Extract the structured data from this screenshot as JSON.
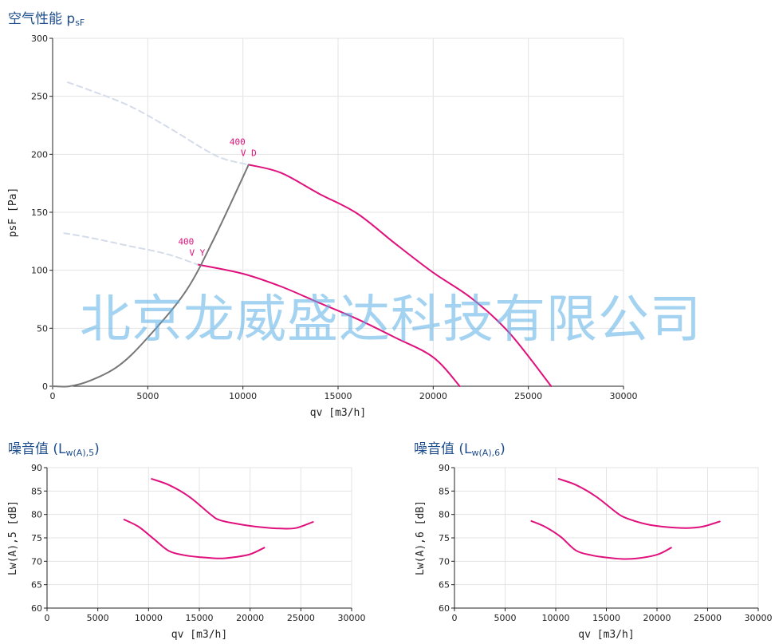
{
  "titles": {
    "main": "空气性能 p",
    "main_sub": "sF",
    "lw5": "噪音值 (L",
    "lw5_sub": "w(A),5",
    "lw5_end": ")",
    "lw6": "噪音值 (L",
    "lw6_sub": "w(A),6",
    "lw6_end": ")"
  },
  "watermark": "北京龙威盛达科技有限公司",
  "colors": {
    "curve": "#e0117c",
    "system": "#777777",
    "dashed": "#d4dcea",
    "grid": "#e3e3e3",
    "title": "#1f4e8c"
  },
  "chart_data": [
    {
      "id": "psf",
      "type": "line",
      "xlabel": "qv [m3/h]",
      "ylabel": "psF [Pa]",
      "xlim": [
        0,
        30000
      ],
      "ylim": [
        0,
        300
      ],
      "xticks": [
        0,
        5000,
        10000,
        15000,
        20000,
        25000,
        30000
      ],
      "yticks": [
        0,
        50,
        100,
        150,
        200,
        250,
        300
      ],
      "grid": true,
      "series": [
        {
          "kind": "fan",
          "points": [
            [
              10300,
              191
            ],
            [
              12000,
              184
            ],
            [
              14000,
              166
            ],
            [
              16000,
              149
            ],
            [
              18000,
              123
            ],
            [
              20000,
              98
            ],
            [
              22000,
              76
            ],
            [
              24000,
              46
            ],
            [
              26200,
              0
            ]
          ]
        },
        {
          "kind": "fan",
          "points": [
            [
              7600,
              105
            ],
            [
              10000,
              97
            ],
            [
              12000,
              86
            ],
            [
              14000,
              72
            ],
            [
              16000,
              58
            ],
            [
              18000,
              42
            ],
            [
              20000,
              25
            ],
            [
              21400,
              0
            ]
          ]
        },
        {
          "kind": "system",
          "points": [
            [
              0,
              0
            ],
            [
              900,
              0
            ],
            [
              2000,
              5
            ],
            [
              3500,
              18
            ],
            [
              5000,
              42
            ],
            [
              7000,
              82
            ],
            [
              8500,
              128
            ],
            [
              10300,
              191
            ]
          ]
        },
        {
          "kind": "extension",
          "points": [
            [
              800,
              262
            ],
            [
              2000,
              255
            ],
            [
              4000,
              242
            ],
            [
              6000,
              224
            ],
            [
              8000,
              204
            ],
            [
              9000,
              196
            ],
            [
              10300,
              191
            ]
          ]
        },
        {
          "kind": "extension",
          "points": [
            [
              600,
              132
            ],
            [
              2000,
              128
            ],
            [
              4000,
              121
            ],
            [
              6000,
              114
            ],
            [
              7600,
              105
            ]
          ]
        }
      ],
      "annotations": [
        {
          "line1": "400",
          "line2": "V D",
          "x": 10300,
          "y": 191
        },
        {
          "line1": "400",
          "line2": "V Y",
          "x": 7600,
          "y": 105
        }
      ]
    },
    {
      "id": "lw5",
      "type": "line",
      "xlabel": "qv [m3/h]",
      "ylabel": "Lw(A),5 [dB]",
      "xlim": [
        0,
        30000
      ],
      "ylim": [
        60,
        90
      ],
      "xticks": [
        0,
        5000,
        10000,
        15000,
        20000,
        25000,
        30000
      ],
      "yticks": [
        60,
        65,
        70,
        75,
        80,
        85,
        90
      ],
      "grid": true,
      "series": [
        {
          "kind": "fan",
          "points": [
            [
              10300,
              87.6
            ],
            [
              12000,
              86.3
            ],
            [
              14000,
              83.8
            ],
            [
              16000,
              80.2
            ],
            [
              17000,
              78.8
            ],
            [
              19000,
              77.9
            ],
            [
              21000,
              77.3
            ],
            [
              23000,
              77.0
            ],
            [
              24500,
              77.1
            ],
            [
              26200,
              78.4
            ]
          ]
        },
        {
          "kind": "fan",
          "points": [
            [
              7600,
              78.9
            ],
            [
              9000,
              77.4
            ],
            [
              10500,
              74.8
            ],
            [
              12000,
              72.2
            ],
            [
              13500,
              71.3
            ],
            [
              15000,
              70.9
            ],
            [
              17000,
              70.6
            ],
            [
              18500,
              70.9
            ],
            [
              20000,
              71.5
            ],
            [
              21400,
              72.9
            ]
          ]
        }
      ]
    },
    {
      "id": "lw6",
      "type": "line",
      "xlabel": "qv [m3/h]",
      "ylabel": "Lw(A),6 [dB]",
      "xlim": [
        0,
        30000
      ],
      "ylim": [
        60,
        90
      ],
      "xticks": [
        0,
        5000,
        10000,
        15000,
        20000,
        25000,
        30000
      ],
      "yticks": [
        60,
        65,
        70,
        75,
        80,
        85,
        90
      ],
      "grid": true,
      "series": [
        {
          "kind": "fan",
          "points": [
            [
              10300,
              87.6
            ],
            [
              12000,
              86.3
            ],
            [
              14000,
              83.8
            ],
            [
              16000,
              80.4
            ],
            [
              17000,
              79.2
            ],
            [
              19000,
              77.9
            ],
            [
              21000,
              77.3
            ],
            [
              23000,
              77.1
            ],
            [
              24500,
              77.4
            ],
            [
              26200,
              78.5
            ]
          ]
        },
        {
          "kind": "fan",
          "points": [
            [
              7600,
              78.6
            ],
            [
              9000,
              77.3
            ],
            [
              10500,
              75.2
            ],
            [
              12000,
              72.3
            ],
            [
              13500,
              71.3
            ],
            [
              15000,
              70.8
            ],
            [
              16500,
              70.5
            ],
            [
              18000,
              70.6
            ],
            [
              20000,
              71.4
            ],
            [
              21400,
              72.9
            ]
          ]
        }
      ]
    }
  ]
}
